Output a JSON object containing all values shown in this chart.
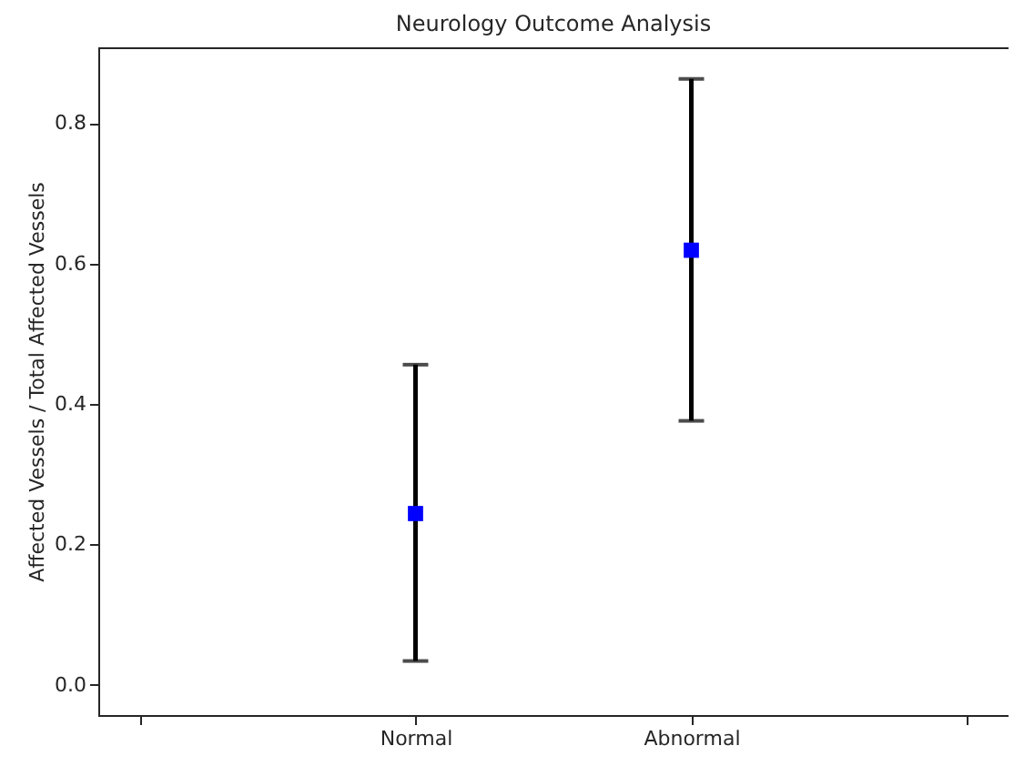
{
  "chart_data": {
    "type": "scatter",
    "title": "Neurology Outcome Analysis",
    "ylabel": "Affected Vessels / Total Affected Vessels",
    "categories": [
      null,
      "Normal",
      "Abnormal",
      null
    ],
    "series": [
      {
        "color": "#0000ff",
        "values": [
          null,
          0.244,
          0.619,
          null
        ],
        "errors": [
          null,
          [
            0.034,
            0.456
          ],
          [
            0.376,
            0.863
          ],
          null
        ]
      }
    ],
    "marker": "square",
    "grid": false,
    "ylim": [
      -0.043,
      0.908
    ],
    "yticks": [
      {
        "value": 0,
        "label": "0.0"
      },
      0.2,
      0.4,
      0.6,
      0.8
    ]
  }
}
